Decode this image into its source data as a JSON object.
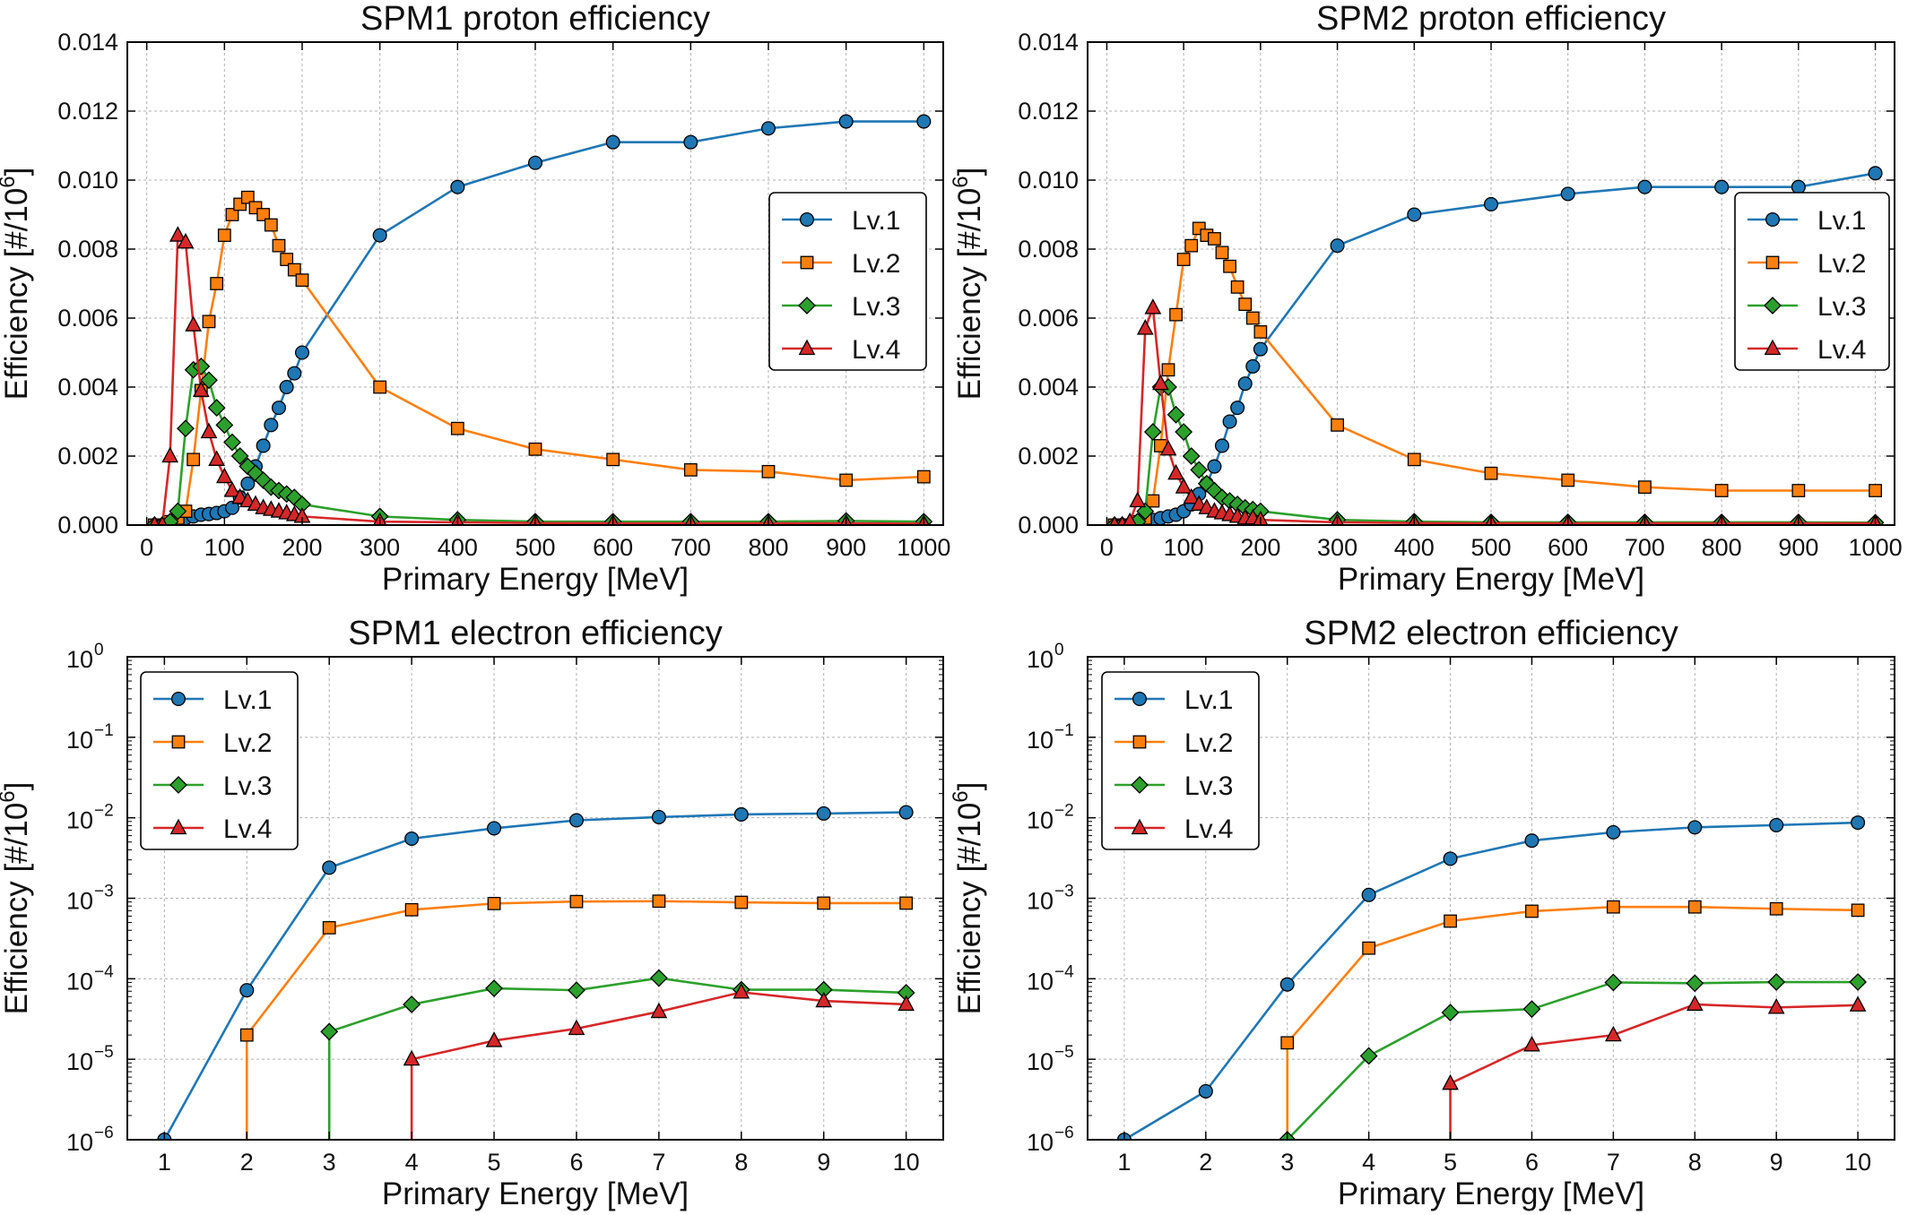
{
  "colors": {
    "Lv.1": "#1f77b4",
    "Lv.2": "#ff7f0e",
    "Lv.3": "#2ca02c",
    "Lv.4": "#d62728",
    "grid": "#b0b0b0",
    "axis": "#000000"
  },
  "chart_data": [
    {
      "id": "spm1-proton",
      "type": "line",
      "title": "SPM1 proton efficiency",
      "xlabel": "Primary Energy [MeV]",
      "ylabel": "Efficiency [#/10",
      "ylabel_sup": "6",
      "ylabel_end": "]",
      "yscale": "linear",
      "xlim": [
        -25,
        1025
      ],
      "ylim": [
        0,
        0.014
      ],
      "xticks": [
        0,
        100,
        200,
        300,
        400,
        500,
        600,
        700,
        800,
        900,
        1000
      ],
      "xtick_labels": [
        "0",
        "100",
        "200",
        "300",
        "400",
        "500",
        "600",
        "700",
        "800",
        "900",
        "1000"
      ],
      "yticks": [
        0,
        0.002,
        0.004,
        0.006,
        0.008,
        0.01,
        0.012,
        0.014
      ],
      "ytick_labels": [
        "0.000",
        "0.002",
        "0.004",
        "0.006",
        "0.008",
        "0.010",
        "0.012",
        "0.014"
      ],
      "grid": true,
      "legend": "center-right",
      "series": [
        {
          "name": "Lv.1",
          "marker": "circle",
          "x": [
            10,
            20,
            30,
            40,
            50,
            60,
            70,
            80,
            90,
            100,
            110,
            120,
            130,
            140,
            150,
            160,
            170,
            180,
            190,
            200,
            300,
            400,
            500,
            600,
            700,
            800,
            900,
            1000
          ],
          "y": [
            0,
            0,
            0,
            0.0001,
            0.0002,
            0.00025,
            0.0003,
            0.00032,
            0.00035,
            0.0004,
            0.0005,
            0.0008,
            0.0012,
            0.0017,
            0.0023,
            0.0029,
            0.0034,
            0.004,
            0.0044,
            0.005,
            0.0084,
            0.0098,
            0.0105,
            0.0111,
            0.0111,
            0.0115,
            0.0117,
            0.0117
          ]
        },
        {
          "name": "Lv.2",
          "marker": "square",
          "x": [
            10,
            20,
            30,
            40,
            50,
            60,
            70,
            80,
            90,
            100,
            110,
            120,
            130,
            140,
            150,
            160,
            170,
            180,
            190,
            200,
            300,
            400,
            500,
            600,
            700,
            800,
            900,
            1000
          ],
          "y": [
            0,
            0,
            0.0001,
            0.0002,
            0.0004,
            0.0019,
            0.0039,
            0.0059,
            0.007,
            0.0084,
            0.009,
            0.0093,
            0.0095,
            0.0092,
            0.009,
            0.0087,
            0.0081,
            0.0077,
            0.0074,
            0.0071,
            0.004,
            0.0028,
            0.0022,
            0.0019,
            0.0016,
            0.00155,
            0.0013,
            0.0014
          ]
        },
        {
          "name": "Lv.3",
          "marker": "diamond",
          "x": [
            10,
            20,
            30,
            40,
            50,
            60,
            70,
            80,
            90,
            100,
            110,
            120,
            130,
            140,
            150,
            160,
            170,
            180,
            190,
            200,
            300,
            400,
            500,
            600,
            700,
            800,
            900,
            1000
          ],
          "y": [
            0,
            0,
            0.0001,
            0.0004,
            0.0028,
            0.0045,
            0.0046,
            0.0042,
            0.0034,
            0.0029,
            0.0024,
            0.002,
            0.0017,
            0.0015,
            0.0013,
            0.0011,
            0.001,
            0.0009,
            0.0008,
            0.0006,
            0.00025,
            0.00015,
            0.0001,
            0.0001,
            0.0001,
            0.0001,
            0.00012,
            0.0001
          ]
        },
        {
          "name": "Lv.4",
          "marker": "triangle",
          "x": [
            10,
            20,
            30,
            40,
            50,
            60,
            70,
            80,
            90,
            100,
            110,
            120,
            130,
            140,
            150,
            160,
            170,
            180,
            190,
            200,
            300,
            400,
            500,
            600,
            700,
            800,
            900,
            1000
          ],
          "y": [
            0,
            0,
            0.002,
            0.0084,
            0.0082,
            0.0058,
            0.0039,
            0.0027,
            0.0019,
            0.0014,
            0.001,
            0.0008,
            0.0007,
            0.0006,
            0.0005,
            0.00045,
            0.0004,
            0.00035,
            0.0003,
            0.00025,
            0.0001,
            8e-05,
            6e-05,
            5e-05,
            5e-05,
            5e-05,
            5e-05,
            4e-05
          ]
        }
      ]
    },
    {
      "id": "spm2-proton",
      "type": "line",
      "title": "SPM2 proton efficiency",
      "xlabel": "Primary Energy [MeV]",
      "ylabel": "Efficiency [#/10",
      "ylabel_sup": "6",
      "ylabel_end": "]",
      "yscale": "linear",
      "xlim": [
        -25,
        1025
      ],
      "ylim": [
        0,
        0.014
      ],
      "xticks": [
        0,
        100,
        200,
        300,
        400,
        500,
        600,
        700,
        800,
        900,
        1000
      ],
      "xtick_labels": [
        "0",
        "100",
        "200",
        "300",
        "400",
        "500",
        "600",
        "700",
        "800",
        "900",
        "1000"
      ],
      "yticks": [
        0,
        0.002,
        0.004,
        0.006,
        0.008,
        0.01,
        0.012,
        0.014
      ],
      "ytick_labels": [
        "0.000",
        "0.002",
        "0.004",
        "0.006",
        "0.008",
        "0.010",
        "0.012",
        "0.014"
      ],
      "grid": true,
      "legend": "center-right",
      "series": [
        {
          "name": "Lv.1",
          "marker": "circle",
          "x": [
            10,
            20,
            30,
            40,
            50,
            60,
            70,
            80,
            90,
            100,
            110,
            120,
            130,
            140,
            150,
            160,
            170,
            180,
            190,
            200,
            300,
            400,
            500,
            600,
            700,
            800,
            900,
            1000
          ],
          "y": [
            0,
            0,
            0,
            5e-05,
            0.0001,
            0.00015,
            0.0002,
            0.00025,
            0.0003,
            0.0004,
            0.0006,
            0.0009,
            0.0012,
            0.0017,
            0.0023,
            0.003,
            0.0034,
            0.0041,
            0.0046,
            0.0051,
            0.0081,
            0.009,
            0.0093,
            0.0096,
            0.0098,
            0.0098,
            0.0098,
            0.0102
          ]
        },
        {
          "name": "Lv.2",
          "marker": "square",
          "x": [
            10,
            20,
            30,
            40,
            50,
            60,
            70,
            80,
            90,
            100,
            110,
            120,
            130,
            140,
            150,
            160,
            170,
            180,
            190,
            200,
            300,
            400,
            500,
            600,
            700,
            800,
            900,
            1000
          ],
          "y": [
            0,
            0,
            0,
            0.0001,
            0.0002,
            0.0007,
            0.0023,
            0.0045,
            0.0061,
            0.0077,
            0.0081,
            0.0086,
            0.0084,
            0.0083,
            0.0079,
            0.0075,
            0.0069,
            0.0064,
            0.006,
            0.0056,
            0.0029,
            0.0019,
            0.0015,
            0.0013,
            0.0011,
            0.001,
            0.001,
            0.001
          ]
        },
        {
          "name": "Lv.3",
          "marker": "diamond",
          "x": [
            10,
            20,
            30,
            40,
            50,
            60,
            70,
            80,
            90,
            100,
            110,
            120,
            130,
            140,
            150,
            160,
            170,
            180,
            190,
            200,
            300,
            400,
            500,
            600,
            700,
            800,
            900,
            1000
          ],
          "y": [
            0,
            0,
            0,
            0.0001,
            0.0004,
            0.0027,
            0.004,
            0.004,
            0.0032,
            0.0027,
            0.002,
            0.0016,
            0.0012,
            0.001,
            0.0008,
            0.0007,
            0.0006,
            0.0005,
            0.00045,
            0.0004,
            0.00015,
            0.0001,
            8e-05,
            8e-05,
            8e-05,
            8e-05,
            8e-05,
            7e-05
          ]
        },
        {
          "name": "Lv.4",
          "marker": "triangle",
          "x": [
            10,
            20,
            30,
            40,
            50,
            60,
            70,
            80,
            90,
            100,
            110,
            120,
            130,
            140,
            150,
            160,
            170,
            180,
            190,
            200,
            300,
            400,
            500,
            600,
            700,
            800,
            900,
            1000
          ],
          "y": [
            0,
            0,
            0.0001,
            0.0007,
            0.0057,
            0.0063,
            0.0041,
            0.0022,
            0.0015,
            0.0011,
            0.0008,
            0.0006,
            0.0005,
            0.0004,
            0.00035,
            0.0003,
            0.00025,
            0.0002,
            0.0002,
            0.00015,
            8e-05,
            6e-05,
            5e-05,
            5e-05,
            5e-05,
            5e-05,
            5e-05,
            5e-05
          ]
        }
      ]
    },
    {
      "id": "spm1-electron",
      "type": "line",
      "title": "SPM1 electron efficiency",
      "xlabel": "Primary Energy [MeV]",
      "ylabel": "Efficiency [#/10",
      "ylabel_sup": "6",
      "ylabel_end": "]",
      "yscale": "log",
      "xlim": [
        0.55,
        10.45
      ],
      "ylim": [
        1e-06,
        1
      ],
      "xticks": [
        1,
        2,
        3,
        4,
        5,
        6,
        7,
        8,
        9,
        10
      ],
      "xtick_labels": [
        "1",
        "2",
        "3",
        "4",
        "5",
        "6",
        "7",
        "8",
        "9",
        "10"
      ],
      "yticks": [
        1e-06,
        1e-05,
        0.0001,
        0.001,
        0.01,
        0.1,
        1
      ],
      "ytick_labels": [
        {
          "base": "10",
          "exp": "−6"
        },
        {
          "base": "10",
          "exp": "−5"
        },
        {
          "base": "10",
          "exp": "−4"
        },
        {
          "base": "10",
          "exp": "−3"
        },
        {
          "base": "10",
          "exp": "−2"
        },
        {
          "base": "10",
          "exp": "−1"
        },
        {
          "base": "10",
          "exp": "0"
        }
      ],
      "grid": true,
      "legend": "top-left",
      "series": [
        {
          "name": "Lv.1",
          "marker": "circle",
          "x": [
            1,
            2,
            3,
            4,
            5,
            6,
            7,
            8,
            9,
            10
          ],
          "y": [
            1e-06,
            7.2e-05,
            0.0024,
            0.0055,
            0.0074,
            0.0093,
            0.0102,
            0.011,
            0.0113,
            0.0117
          ]
        },
        {
          "name": "Lv.2",
          "marker": "square",
          "x": [
            2,
            3,
            4,
            5,
            6,
            7,
            8,
            9,
            10
          ],
          "y": [
            2e-05,
            0.00043,
            0.00072,
            0.00086,
            0.00091,
            0.00092,
            0.00089,
            0.00087,
            0.00087
          ],
          "drop_from_bottom": true
        },
        {
          "name": "Lv.3",
          "marker": "diamond",
          "x": [
            3,
            4,
            5,
            6,
            7,
            8,
            9,
            10
          ],
          "y": [
            2.2e-05,
            4.8e-05,
            7.6e-05,
            7.2e-05,
            0.000102,
            7.3e-05,
            7.3e-05,
            6.7e-05
          ],
          "drop_from_bottom": true
        },
        {
          "name": "Lv.4",
          "marker": "triangle",
          "x": [
            4,
            5,
            6,
            7,
            8,
            9,
            10
          ],
          "y": [
            1e-05,
            1.7e-05,
            2.4e-05,
            3.9e-05,
            6.8e-05,
            5.3e-05,
            4.8e-05
          ],
          "drop_from_bottom": true
        }
      ]
    },
    {
      "id": "spm2-electron",
      "type": "line",
      "title": "SPM2 electron efficiency",
      "xlabel": "Primary Energy [MeV]",
      "ylabel": "Efficiency [#/10",
      "ylabel_sup": "6",
      "ylabel_end": "]",
      "yscale": "log",
      "xlim": [
        0.55,
        10.45
      ],
      "ylim": [
        1e-06,
        1
      ],
      "xticks": [
        1,
        2,
        3,
        4,
        5,
        6,
        7,
        8,
        9,
        10
      ],
      "xtick_labels": [
        "1",
        "2",
        "3",
        "4",
        "5",
        "6",
        "7",
        "8",
        "9",
        "10"
      ],
      "yticks": [
        1e-06,
        1e-05,
        0.0001,
        0.001,
        0.01,
        0.1,
        1
      ],
      "ytick_labels": [
        {
          "base": "10",
          "exp": "−6"
        },
        {
          "base": "10",
          "exp": "−5"
        },
        {
          "base": "10",
          "exp": "−4"
        },
        {
          "base": "10",
          "exp": "−3"
        },
        {
          "base": "10",
          "exp": "−2"
        },
        {
          "base": "10",
          "exp": "−1"
        },
        {
          "base": "10",
          "exp": "0"
        }
      ],
      "grid": true,
      "legend": "top-left",
      "series": [
        {
          "name": "Lv.1",
          "marker": "circle",
          "x": [
            1,
            2,
            3,
            4,
            5,
            6,
            7,
            8,
            9,
            10
          ],
          "y": [
            1e-06,
            4e-06,
            8.5e-05,
            0.0011,
            0.0031,
            0.0052,
            0.0066,
            0.0076,
            0.0081,
            0.0087
          ]
        },
        {
          "name": "Lv.2",
          "marker": "square",
          "x": [
            3,
            4,
            5,
            6,
            7,
            8,
            9,
            10
          ],
          "y": [
            1.6e-05,
            0.00024,
            0.00052,
            0.00069,
            0.00078,
            0.00078,
            0.00074,
            0.00071
          ],
          "drop_from_bottom": true
        },
        {
          "name": "Lv.3",
          "marker": "diamond",
          "x": [
            3,
            4,
            5,
            6,
            7,
            8,
            9,
            10
          ],
          "y": [
            1e-06,
            1.1e-05,
            3.8e-05,
            4.2e-05,
            9e-05,
            8.8e-05,
            9.1e-05,
            9.1e-05
          ]
        },
        {
          "name": "Lv.4",
          "marker": "triangle",
          "x": [
            5,
            6,
            7,
            8,
            9,
            10
          ],
          "y": [
            5e-06,
            1.5e-05,
            2e-05,
            4.8e-05,
            4.4e-05,
            4.7e-05
          ],
          "drop_from_bottom": true
        }
      ]
    }
  ]
}
